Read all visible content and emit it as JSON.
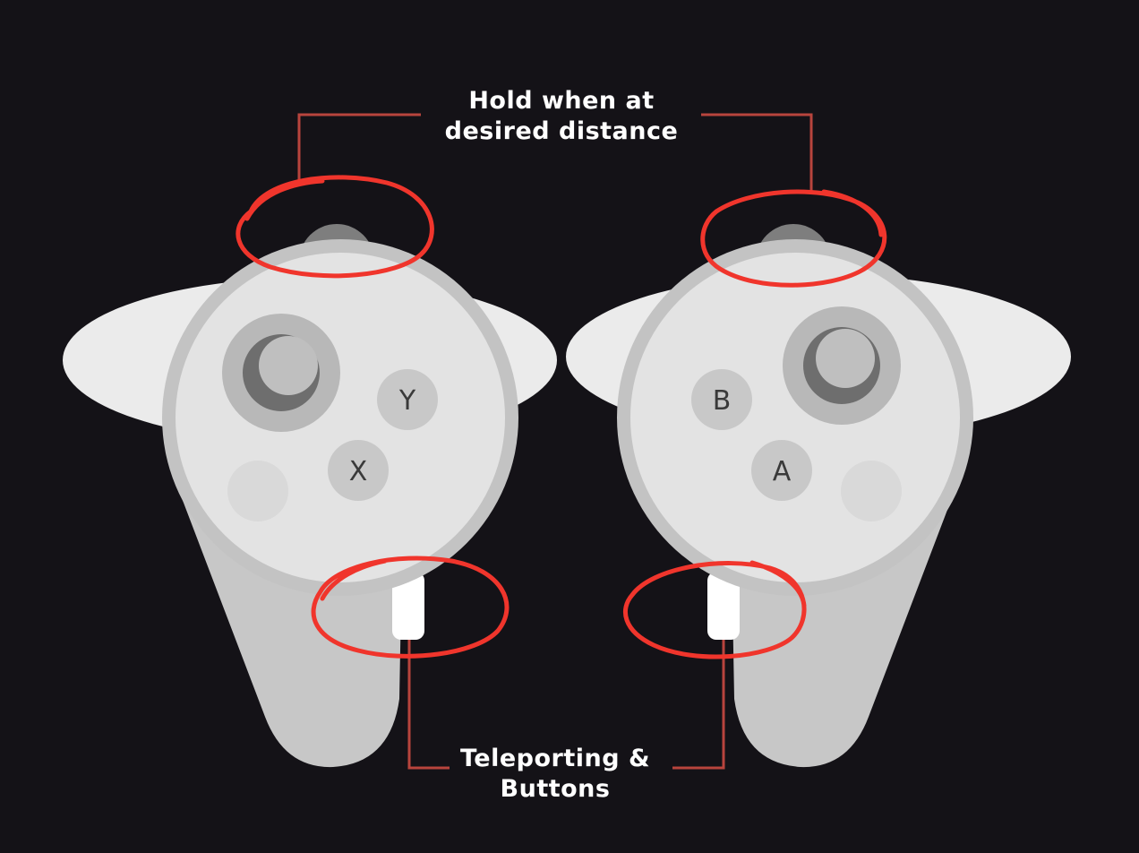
{
  "captions": {
    "top": {
      "line1": "Hold when at",
      "line2": "desired distance"
    },
    "bottom": {
      "line1": "Teleporting &",
      "line2": "Buttons"
    }
  },
  "left_controller": {
    "buttons": {
      "upper": "Y",
      "lower": "X"
    }
  },
  "right_controller": {
    "buttons": {
      "upper": "B",
      "lower": "A"
    }
  },
  "colors": {
    "background": "#141217",
    "controller_body": "#e4e4e4",
    "controller_grip": "#c5c5c5",
    "highlight_circle": "#f0352c",
    "leader_line": "#b8443d",
    "caption_text": "#ffffff"
  }
}
